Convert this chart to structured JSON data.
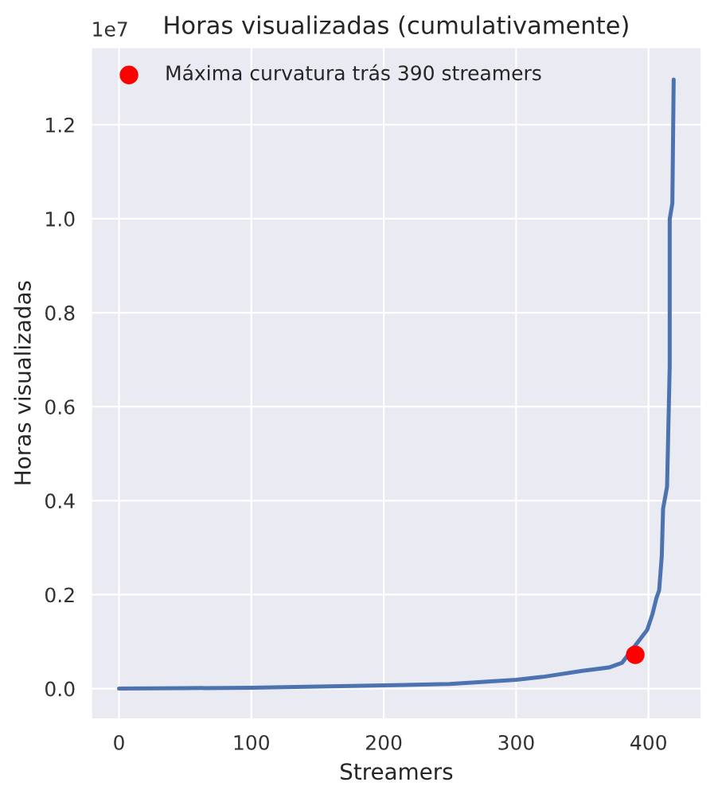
{
  "chart_data": {
    "type": "line",
    "title": "Horas visualizadas (cumulativamente)",
    "xlabel": "Streamers",
    "ylabel": "Horas visualizadas",
    "annotations": [
      "1e7"
    ],
    "series": [
      {
        "color": "#4c72b0",
        "x": [
          0,
          50,
          100,
          200,
          250,
          300,
          320,
          350,
          370,
          380,
          399,
          403,
          406,
          408,
          410,
          411,
          414,
          416,
          416,
          418,
          419
        ],
        "values": [
          0,
          0.001,
          0.002,
          0.007,
          0.01,
          0.019,
          0.025,
          0.038,
          0.045,
          0.055,
          0.125,
          0.159,
          0.193,
          0.209,
          0.282,
          0.383,
          0.43,
          0.686,
          0.999,
          1.033,
          1.296
        ]
      },
      {
        "type": "scatter",
        "name": "Máxima curvatura trás 390 streamers",
        "color": "#ff0000",
        "x": [
          390
        ],
        "values": [
          0.072
        ]
      }
    ],
    "xlim": [
      -21,
      440
    ],
    "xticks": [
      0,
      100,
      200,
      300,
      400
    ],
    "ylim": [
      -0.065,
      1.365
    ],
    "yticks": [
      {
        "value": 0,
        "label": "0.0"
      },
      0.2,
      0.4,
      0.6,
      0.8,
      {
        "value": 1,
        "label": "1.0"
      },
      1.2
    ],
    "grid": true,
    "legend": "top left"
  }
}
